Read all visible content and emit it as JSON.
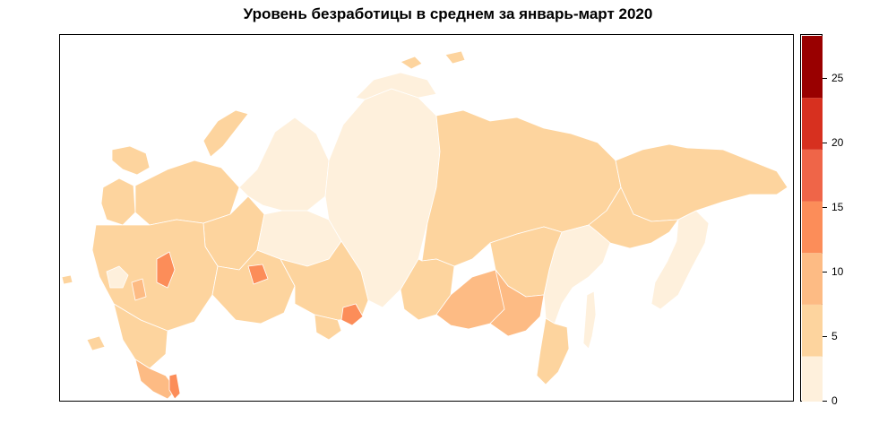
{
  "title": "Уровень безработицы в среднем за январь-март 2020",
  "legend": {
    "bins": [
      {
        "from": 0,
        "to": 3.5,
        "color": "#FEF0DC"
      },
      {
        "from": 3.5,
        "to": 7.5,
        "color": "#FDD49E"
      },
      {
        "from": 7.5,
        "to": 11.5,
        "color": "#FDBB84"
      },
      {
        "from": 11.5,
        "to": 15.5,
        "color": "#FC8D59"
      },
      {
        "from": 15.5,
        "to": 19.5,
        "color": "#EF6548"
      },
      {
        "from": 19.5,
        "to": 23.5,
        "color": "#D7301F"
      },
      {
        "from": 23.5,
        "to": 28.3,
        "color": "#990000"
      }
    ],
    "ticks": [
      "0",
      "5",
      "10",
      "15",
      "20",
      "25"
    ],
    "tick_values": [
      0,
      5,
      10,
      15,
      20,
      25
    ],
    "min": 0,
    "max": 28.3
  },
  "map": {
    "region_colors": {
      "low": "#FEF0DC",
      "mid": "#FDD49E",
      "high": "#FDBB84",
      "higher": "#FC8D59",
      "highest": "#EF6548"
    }
  }
}
